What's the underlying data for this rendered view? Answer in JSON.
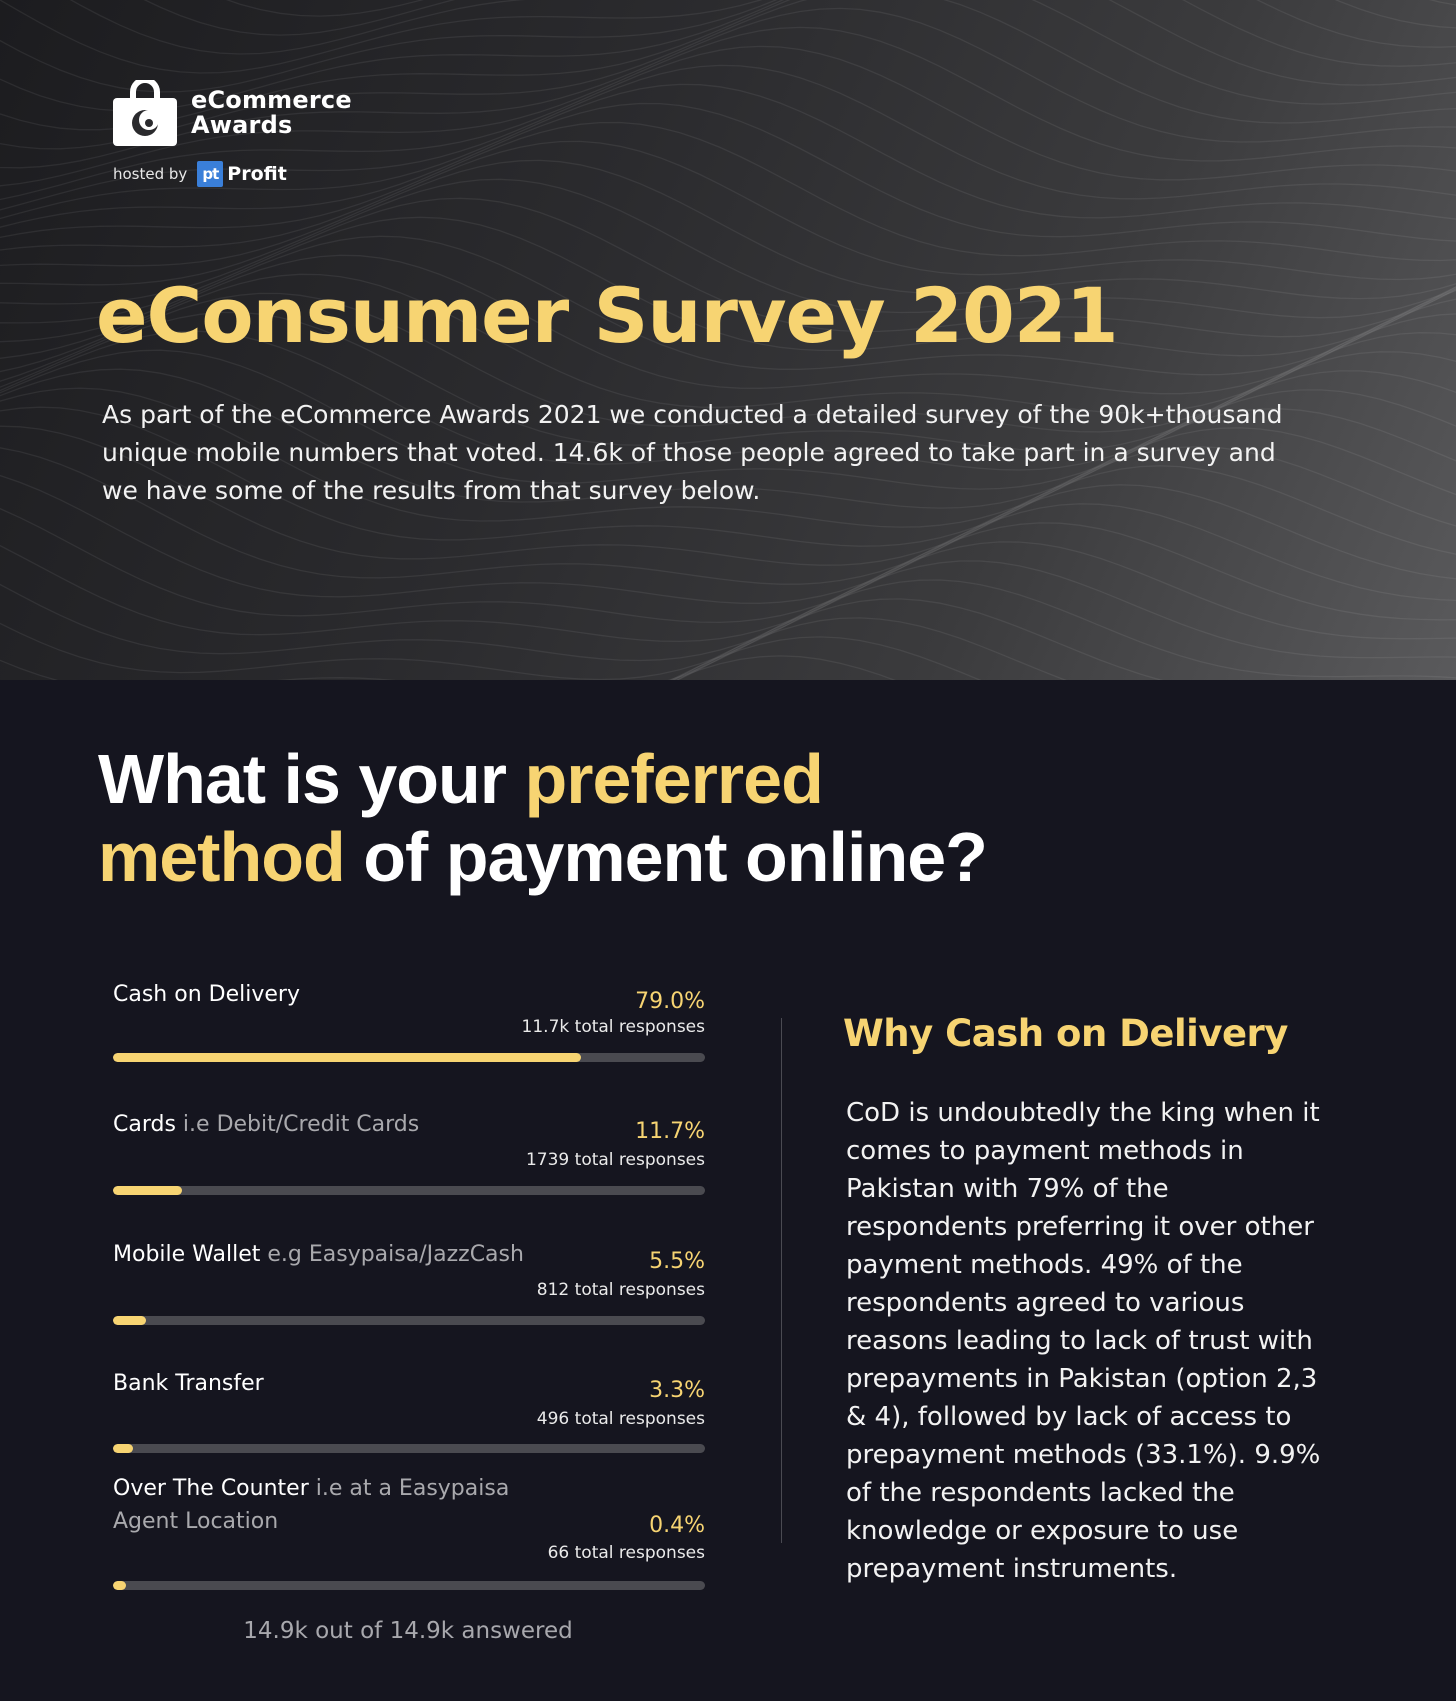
{
  "brand": {
    "name_line1": "eCommerce",
    "name_line2": "Awards",
    "hosted_by": "hosted by",
    "host_mark": "pt",
    "host_name": "Profit"
  },
  "hero": {
    "title": "eConsumer Survey 2021",
    "intro": "As part of the eCommerce Awards 2021 we conducted a detailed survey of the 90k+thousand unique mobile numbers that voted. 14.6k of those people agreed to take part in a survey and we have some of the results from that survey below."
  },
  "question": {
    "part1": "What is your ",
    "highlight1": "preferred",
    "highlight2": "method",
    "part2": " of payment online?"
  },
  "chart_data": {
    "type": "bar",
    "orientation": "horizontal",
    "title": "What is your preferred method of payment online?",
    "categories": [
      "Cash on Delivery",
      "Cards i.e Debit/Credit Cards",
      "Mobile Wallet e.g Easypaisa/JazzCash",
      "Bank Transfer",
      "Over The Counter i.e at a Easypaisa Agent Location"
    ],
    "rows": [
      {
        "label": "Cash on Delivery",
        "sublabel": "",
        "percent": 79.0,
        "percent_text": "79.0%",
        "responses": "11.7k total responses"
      },
      {
        "label": "Cards",
        "sublabel": " i.e Debit/Credit Cards",
        "percent": 11.7,
        "percent_text": "11.7%",
        "responses": "1739 total responses"
      },
      {
        "label": "Mobile Wallet",
        "sublabel": " e.g Easypaisa/JazzCash",
        "percent": 5.5,
        "percent_text": "5.5%",
        "responses": "812 total responses"
      },
      {
        "label": "Bank Transfer",
        "sublabel": "",
        "percent": 3.3,
        "percent_text": "3.3%",
        "responses": "496 total responses"
      },
      {
        "label": "Over The Counter",
        "sublabel": " i.e at a Easypaisa Agent Location",
        "percent": 0.4,
        "percent_text": "0.4%",
        "responses": "66 total responses"
      }
    ],
    "values": [
      79.0,
      11.7,
      5.5,
      3.3,
      0.4
    ],
    "xlim": [
      0,
      100
    ],
    "answered": "14.9k out of 14.9k answered",
    "colors": {
      "fill": "#f7d472",
      "track": "#4a4a50"
    }
  },
  "why": {
    "title": "Why Cash on Delivery",
    "body": "CoD is undoubtedly the king when it comes to payment methods in Pakistan with 79% of the respondents preferring it over other payment methods. 49% of the respondents agreed to various reasons leading to lack of trust with prepayments in Pakistan (option 2,3 & 4), followed by lack of access to prepayment methods (33.1%). 9.9% of the respondents lacked the knowledge or exposure to use prepayment instruments."
  },
  "colors": {
    "accent": "#f7d472",
    "page_bg": "#15151f"
  },
  "icons": {
    "logo": "shopping-bag-crescent-icon"
  }
}
